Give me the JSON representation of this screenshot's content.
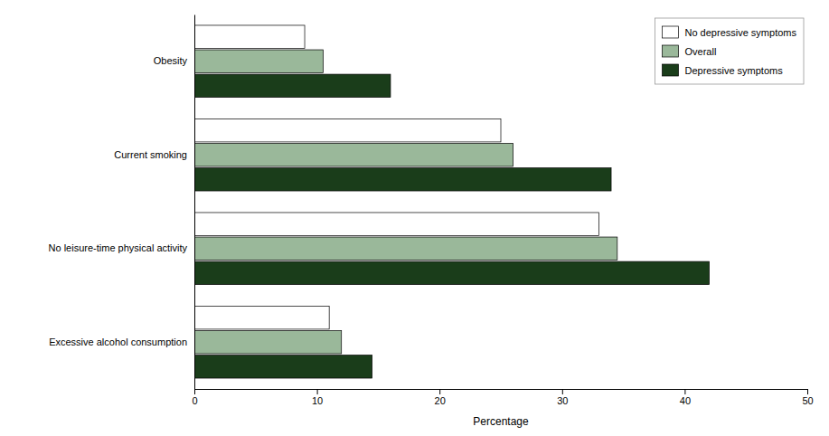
{
  "chart_data": {
    "type": "bar",
    "orientation": "horizontal",
    "categories": [
      "Obesity",
      "Current smoking",
      "No leisure-time physical activity",
      "Excessive alcohol consumption"
    ],
    "series": [
      {
        "name": "No depressive symptoms",
        "color": "#ffffff",
        "values": [
          9.0,
          25.0,
          33.0,
          11.0
        ]
      },
      {
        "name": "Overall",
        "color": "#9ab89a",
        "values": [
          10.5,
          26.0,
          34.5,
          12.0
        ]
      },
      {
        "name": "Depressive symptoms",
        "color": "#1a3d1a",
        "values": [
          16.0,
          34.0,
          42.0,
          14.5
        ]
      }
    ],
    "xlabel": "Percentage",
    "xlim": [
      0,
      50
    ],
    "xticks": [
      0,
      10,
      20,
      30,
      40,
      50
    ],
    "legend": "upper right",
    "grid": false
  }
}
